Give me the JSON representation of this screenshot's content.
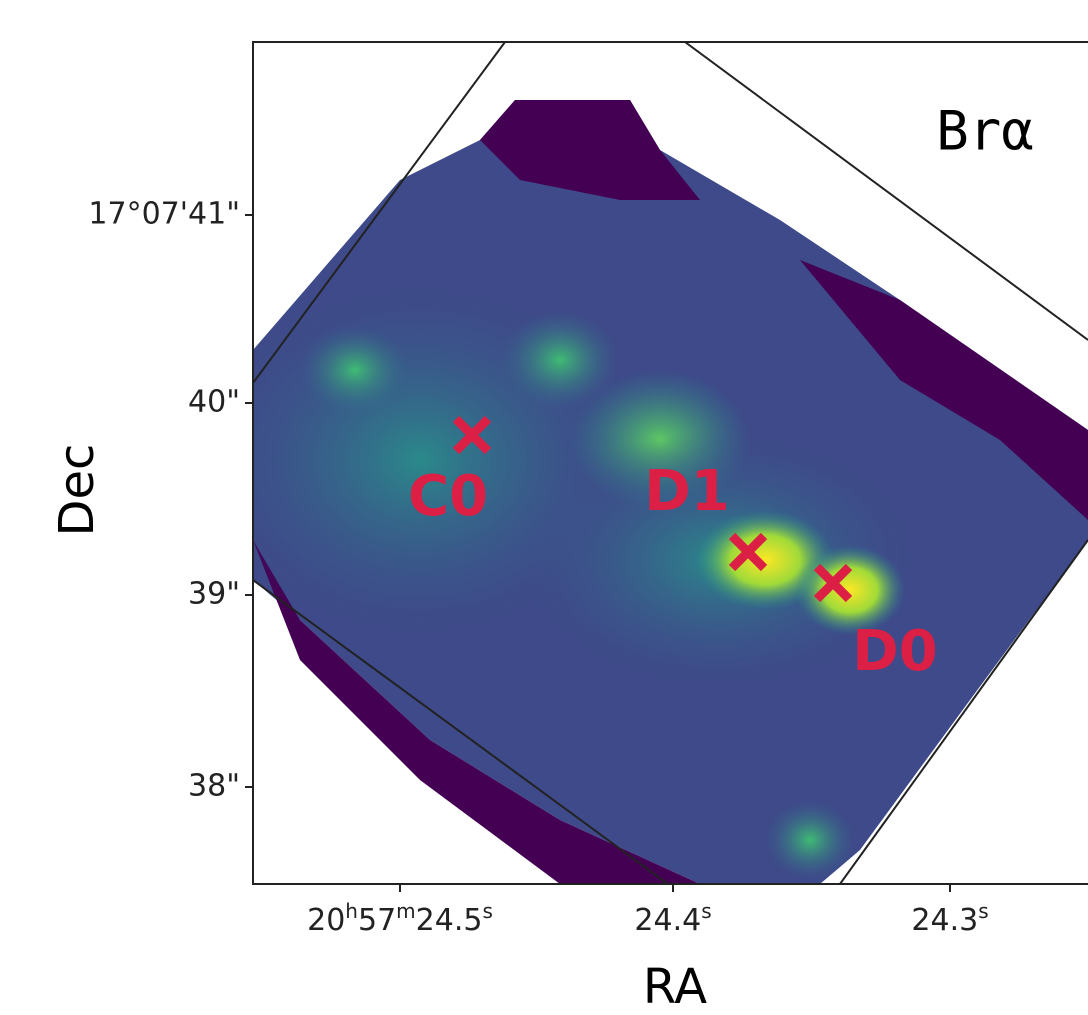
{
  "figure": {
    "panel_label": "Brα",
    "x_axis_label": "RA",
    "y_axis_label": "Dec",
    "y_ticks": [
      "17°07'41\"",
      "40\"",
      "39\"",
      "38\""
    ],
    "x_ticks": [
      [
        "20",
        "h",
        "57",
        "m",
        "24.5",
        "s"
      ],
      [
        "24.4",
        "s"
      ],
      [
        "24.3",
        "s"
      ]
    ],
    "sources": [
      "C0",
      "D1",
      "D0"
    ]
  }
}
